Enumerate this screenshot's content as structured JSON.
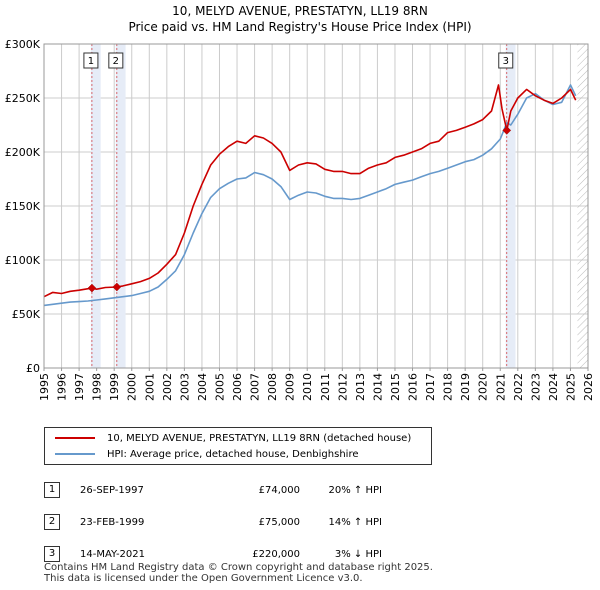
{
  "title": "10, MELYD AVENUE, PRESTATYN, LL19 8RN",
  "subtitle": "Price paid vs. HM Land Registry's House Price Index (HPI)",
  "chart_data": {
    "type": "line",
    "xlim": [
      1995,
      2026
    ],
    "ylim": [
      0,
      300000
    ],
    "y_ticks": [
      0,
      50000,
      100000,
      150000,
      200000,
      250000,
      300000
    ],
    "y_tick_labels": [
      "£0",
      "£50K",
      "£100K",
      "£150K",
      "£200K",
      "£250K",
      "£300K"
    ],
    "x_ticks": [
      1995,
      1996,
      1997,
      1998,
      1999,
      2000,
      2001,
      2002,
      2003,
      2004,
      2005,
      2006,
      2007,
      2008,
      2009,
      2010,
      2011,
      2012,
      2013,
      2014,
      2015,
      2016,
      2017,
      2018,
      2019,
      2020,
      2021,
      2022,
      2023,
      2024,
      2025,
      2026
    ],
    "x_tick_labels": [
      "1995",
      "1996",
      "1997",
      "1998",
      "1999",
      "2000",
      "2001",
      "2002",
      "2003",
      "2004",
      "2005",
      "2006",
      "2007",
      "2008",
      "2009",
      "2010",
      "2011",
      "2012",
      "2013",
      "2014",
      "2015",
      "2016",
      "2017",
      "2018",
      "2019",
      "2020",
      "2021",
      "2022",
      "2023",
      "2024",
      "2025",
      "2026"
    ],
    "grid": true,
    "data_end": 2025.4,
    "series": [
      {
        "name": "10, MELYD AVENUE, PRESTATYN, LL19 8RN (detached house)",
        "color": "#cc0000",
        "x": [
          1995.0,
          1995.5,
          1996.0,
          1996.5,
          1997.0,
          1997.73,
          1998.0,
          1998.5,
          1999.15,
          1999.5,
          2000.0,
          2000.5,
          2001.0,
          2001.5,
          2002.0,
          2002.5,
          2003.0,
          2003.5,
          2004.0,
          2004.5,
          2005.0,
          2005.5,
          2006.0,
          2006.5,
          2007.0,
          2007.5,
          2008.0,
          2008.5,
          2009.0,
          2009.5,
          2010.0,
          2010.5,
          2011.0,
          2011.5,
          2012.0,
          2012.5,
          2013.0,
          2013.5,
          2014.0,
          2014.5,
          2015.0,
          2015.5,
          2016.0,
          2016.5,
          2017.0,
          2017.5,
          2018.0,
          2018.5,
          2019.0,
          2019.5,
          2020.0,
          2020.5,
          2020.9,
          2021.1,
          2021.37,
          2021.6,
          2022.0,
          2022.5,
          2023.0,
          2023.5,
          2024.0,
          2024.5,
          2025.0,
          2025.3
        ],
        "y": [
          66000,
          70000,
          69000,
          71000,
          72000,
          74000,
          73000,
          74500,
          75000,
          76000,
          78000,
          80000,
          83000,
          88000,
          96000,
          105000,
          125000,
          150000,
          170000,
          188000,
          198000,
          205000,
          210000,
          208000,
          215000,
          213000,
          208000,
          200000,
          183000,
          188000,
          190000,
          189000,
          184000,
          182000,
          182000,
          180000,
          180000,
          185000,
          188000,
          190000,
          195000,
          197000,
          200000,
          203000,
          208000,
          210000,
          218000,
          220000,
          223000,
          226000,
          230000,
          238000,
          262000,
          240000,
          220000,
          238000,
          250000,
          258000,
          252000,
          248000,
          245000,
          250000,
          258000,
          248000
        ]
      },
      {
        "name": "HPI: Average price, detached house, Denbighshire",
        "color": "#6699cc",
        "x": [
          1995.0,
          1995.5,
          1996.0,
          1996.5,
          1997.0,
          1997.5,
          1998.0,
          1998.5,
          1999.0,
          1999.5,
          2000.0,
          2000.5,
          2001.0,
          2001.5,
          2002.0,
          2002.5,
          2003.0,
          2003.5,
          2004.0,
          2004.5,
          2005.0,
          2005.5,
          2006.0,
          2006.5,
          2007.0,
          2007.5,
          2008.0,
          2008.5,
          2009.0,
          2009.5,
          2010.0,
          2010.5,
          2011.0,
          2011.5,
          2012.0,
          2012.5,
          2013.0,
          2013.5,
          2014.0,
          2014.5,
          2015.0,
          2015.5,
          2016.0,
          2016.5,
          2017.0,
          2017.5,
          2018.0,
          2018.5,
          2019.0,
          2019.5,
          2020.0,
          2020.5,
          2021.0,
          2021.37,
          2021.6,
          2022.0,
          2022.5,
          2023.0,
          2023.5,
          2024.0,
          2024.5,
          2025.0,
          2025.3
        ],
        "y": [
          58000,
          59000,
          60000,
          61000,
          61500,
          62000,
          63000,
          64000,
          65000,
          66000,
          67000,
          69000,
          71000,
          75000,
          82000,
          90000,
          105000,
          125000,
          143000,
          158000,
          166000,
          171000,
          175000,
          176000,
          181000,
          179000,
          175000,
          168000,
          156000,
          160000,
          163000,
          162000,
          159000,
          157000,
          157000,
          156000,
          157000,
          160000,
          163000,
          166000,
          170000,
          172000,
          174000,
          177000,
          180000,
          182000,
          185000,
          188000,
          191000,
          193000,
          197000,
          203000,
          212000,
          227000,
          225000,
          235000,
          250000,
          254000,
          248000,
          244000,
          246000,
          262000,
          252000
        ]
      }
    ],
    "sales": [
      {
        "label": "1",
        "x": 1997.73,
        "y": 74000
      },
      {
        "label": "2",
        "x": 1999.15,
        "y": 75000
      },
      {
        "label": "3",
        "x": 2021.37,
        "y": 220000
      }
    ]
  },
  "legend": {
    "entry1": "10, MELYD AVENUE, PRESTATYN, LL19 8RN (detached house)",
    "entry2": "HPI: Average price, detached house, Denbighshire"
  },
  "transactions": [
    {
      "num": "1",
      "date": "26-SEP-1997",
      "price": "£74,000",
      "hpi": "20% ↑ HPI"
    },
    {
      "num": "2",
      "date": "23-FEB-1999",
      "price": "£75,000",
      "hpi": "14% ↑ HPI"
    },
    {
      "num": "3",
      "date": "14-MAY-2021",
      "price": "£220,000",
      "hpi": "3% ↓ HPI"
    }
  ],
  "footer": {
    "line1": "Contains HM Land Registry data © Crown copyright and database right 2025.",
    "line2": "This data is licensed under the Open Government Licence v3.0."
  }
}
